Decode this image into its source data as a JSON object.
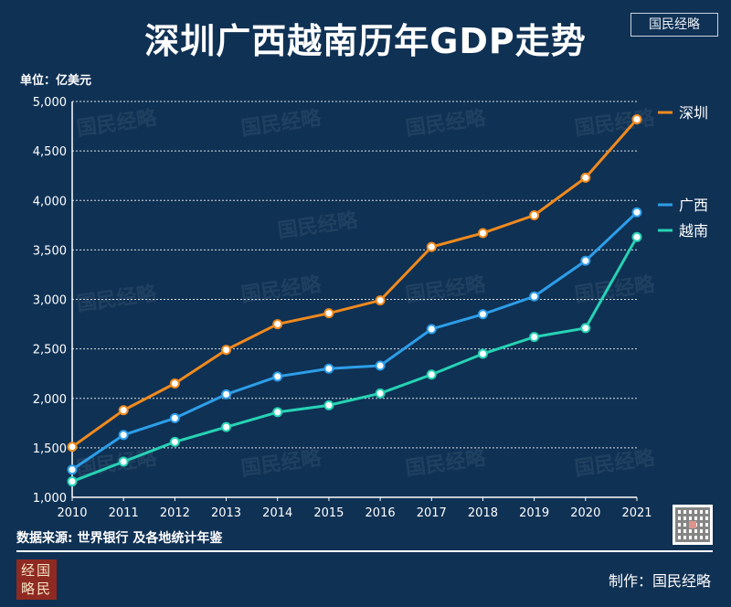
{
  "title": "深圳广西越南历年GDP走势",
  "brand": "国民经略",
  "unit_label": "单位：亿美元",
  "source": "数据来源: 世界银行 及各地统计年鉴",
  "credit": "制作：国民经略",
  "logo_lines": [
    "经国",
    "略民"
  ],
  "watermark_text": "国民经略",
  "chart_data": {
    "type": "line",
    "title": "深圳广西越南历年GDP走势",
    "xlabel": "",
    "ylabel": "单位：亿美元",
    "categories": [
      "2010",
      "2011",
      "2012",
      "2013",
      "2014",
      "2015",
      "2016",
      "2017",
      "2018",
      "2019",
      "2020",
      "2021"
    ],
    "ylim": [
      1000,
      5000
    ],
    "yticks": [
      1000,
      1500,
      2000,
      2500,
      3000,
      3500,
      4000,
      4500,
      5000
    ],
    "ytick_labels": [
      "1,000",
      "1,500",
      "2,000",
      "2,500",
      "3,000",
      "3,500",
      "4,000",
      "4,500",
      "5,000"
    ],
    "grid": true,
    "legend_position": "right",
    "series": [
      {
        "name": "深圳",
        "color": "#f08a1e",
        "values": [
          1510,
          1880,
          2150,
          2490,
          2750,
          2860,
          2990,
          3530,
          3670,
          3850,
          4230,
          4820
        ]
      },
      {
        "name": "广西",
        "color": "#2d9ee9",
        "values": [
          1280,
          1630,
          1800,
          2040,
          2220,
          2300,
          2330,
          2700,
          2850,
          3030,
          3390,
          3880
        ]
      },
      {
        "name": "越南",
        "color": "#26d3b4",
        "values": [
          1160,
          1360,
          1560,
          1710,
          1860,
          1930,
          2050,
          2240,
          2450,
          2620,
          2710,
          3630
        ]
      }
    ]
  }
}
